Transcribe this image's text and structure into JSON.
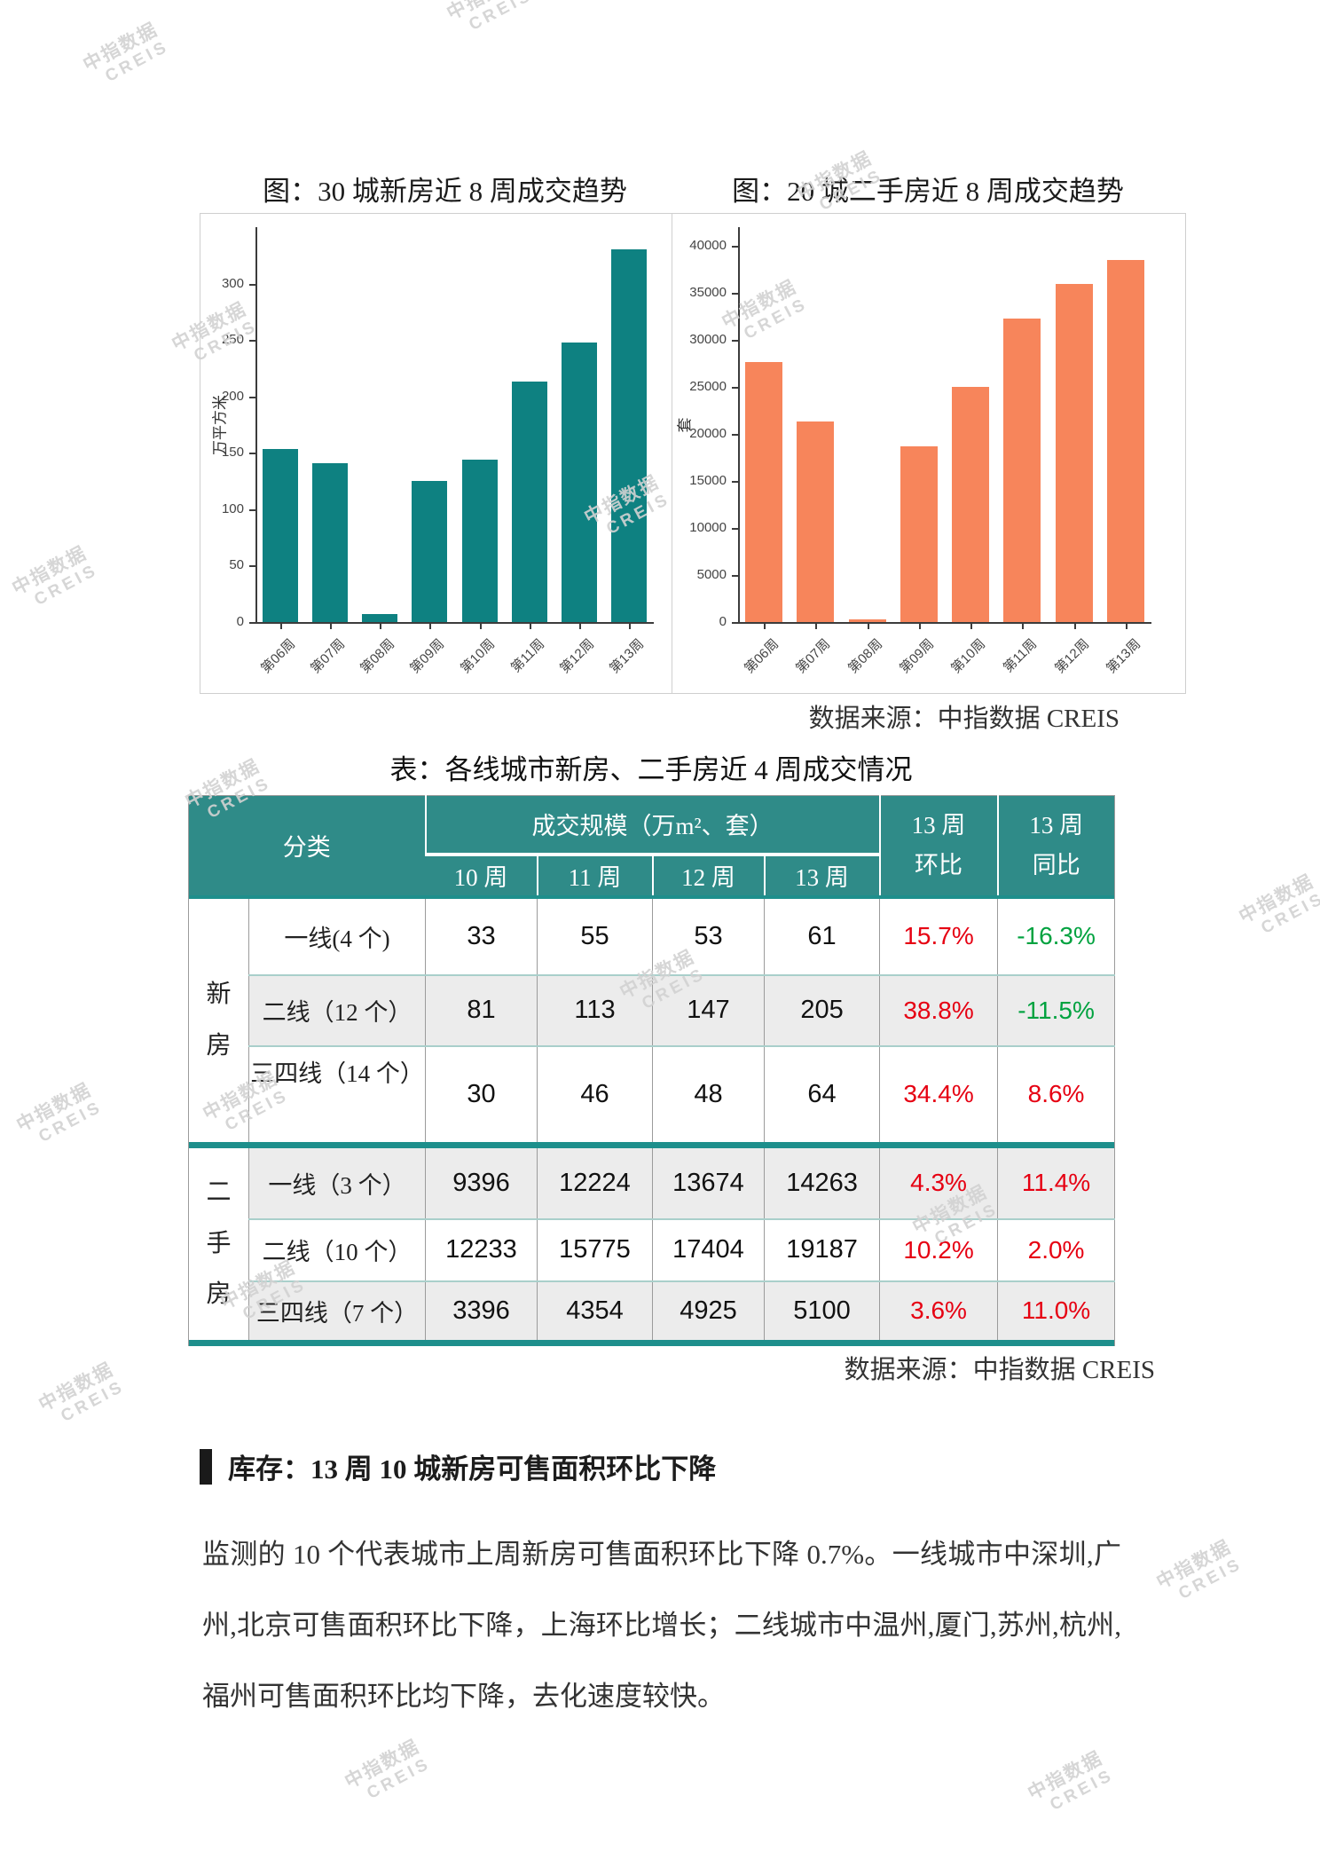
{
  "watermark": {
    "line1": "中指数据",
    "line2": "CREIS"
  },
  "colors": {
    "teal_bar": "#0e8181",
    "orange_bar": "#f7855b",
    "table_header_bg": "#2f8b88",
    "table_divider": "#1e8f8c",
    "percent_red": "#e60012",
    "percent_green": "#00a23f",
    "watermark_gray": "#d2d2d2"
  },
  "chart_data": [
    {
      "type": "bar",
      "title": "图：30 城新房近 8 周成交趋势",
      "categories": [
        "第06周",
        "第07周",
        "第08周",
        "第09周",
        "第10周",
        "第11周",
        "第12周",
        "第13周"
      ],
      "values": [
        153,
        141,
        7,
        125,
        144,
        213,
        248,
        330
      ],
      "xlabel": "",
      "ylabel": "万平方米",
      "yticks": [
        0,
        50,
        100,
        150,
        200,
        250,
        300
      ],
      "ylim": [
        0,
        350
      ],
      "bar_color": "#0e8181",
      "grid": false,
      "legend": "none"
    },
    {
      "type": "bar",
      "title": "图：20 城二手房近 8 周成交趋势",
      "categories": [
        "第06周",
        "第07周",
        "第08周",
        "第09周",
        "第10周",
        "第11周",
        "第12周",
        "第13周"
      ],
      "values": [
        27700,
        21300,
        200,
        18700,
        25000,
        32300,
        36000,
        38500
      ],
      "xlabel": "",
      "ylabel": "套",
      "yticks": [
        0,
        5000,
        10000,
        15000,
        20000,
        25000,
        30000,
        35000,
        40000
      ],
      "ylim": [
        0,
        42000
      ],
      "bar_color": "#f7855b",
      "grid": false,
      "legend": "none"
    }
  ],
  "charts_source_note": "数据来源：中指数据 CREIS",
  "table": {
    "title": "表：各线城市新房、二手房近 4 周成交情况",
    "source_note": "数据来源：中指数据 CREIS",
    "header": {
      "category": "分类",
      "scale_group": "成交规模（万m²、套）",
      "weeks": [
        "10 周",
        "11 周",
        "12 周",
        "13 周"
      ],
      "wow_line1": "13 周",
      "wow_line2": "环比",
      "yoy_line1": "13 周",
      "yoy_line2": "同比"
    },
    "groups": [
      {
        "name": "新房",
        "rows": [
          {
            "label": "一线(4 个)",
            "values": [
              "33",
              "55",
              "53",
              "61"
            ],
            "wow": "15.7%",
            "wow_tone": "red",
            "yoy": "-16.3%",
            "yoy_tone": "green"
          },
          {
            "label": "二线（12 个）",
            "values": [
              "81",
              "113",
              "147",
              "205"
            ],
            "wow": "38.8%",
            "wow_tone": "red",
            "yoy": "-11.5%",
            "yoy_tone": "green"
          },
          {
            "label": "三四线（14 个）",
            "values": [
              "30",
              "46",
              "48",
              "64"
            ],
            "wow": "34.4%",
            "wow_tone": "red",
            "yoy": "8.6%",
            "yoy_tone": "red",
            "label_top": true
          }
        ]
      },
      {
        "name": "二手房",
        "rows": [
          {
            "label": "一线（3 个）",
            "values": [
              "9396",
              "12224",
              "13674",
              "14263"
            ],
            "wow": "4.3%",
            "wow_tone": "red",
            "yoy": "11.4%",
            "yoy_tone": "red"
          },
          {
            "label": "二线（10 个）",
            "values": [
              "12233",
              "15775",
              "17404",
              "19187"
            ],
            "wow": "10.2%",
            "wow_tone": "red",
            "yoy": "2.0%",
            "yoy_tone": "red"
          },
          {
            "label": "三四线（7 个）",
            "values": [
              "3396",
              "4354",
              "4925",
              "5100"
            ],
            "wow": "3.6%",
            "wow_tone": "red",
            "yoy": "11.0%",
            "yoy_tone": "red"
          }
        ]
      }
    ]
  },
  "section": {
    "heading": "库存：13 周 10 城新房可售面积环比下降",
    "paragraph": "监测的 10 个代表城市上周新房可售面积环比下降 0.7%。一线城市中深圳,广州,北京可售面积环比下降，上海环比增长；二线城市中温州,厦门,苏州,杭州,福州可售面积环比均下降，去化速度较快。"
  }
}
